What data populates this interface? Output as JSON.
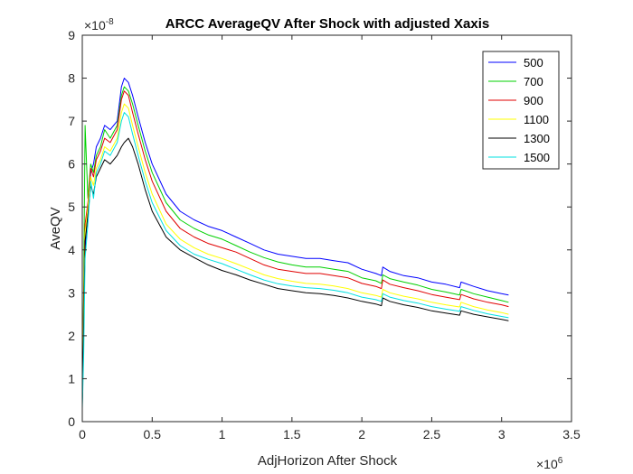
{
  "chart_data": {
    "type": "line",
    "title": "ARCC AverageQV After Shock with adjusted Xaxis",
    "xlabel": "AdjHorizon After Shock",
    "ylabel": "AveQV",
    "x_exponent_base": "×10",
    "x_exponent_power": "6",
    "y_exponent_base": "×10",
    "y_exponent_power": "-8",
    "xlim": [
      0,
      3.5
    ],
    "ylim": [
      0,
      9
    ],
    "x_ticks": [
      0,
      0.5,
      1,
      1.5,
      2,
      2.5,
      3,
      3.5
    ],
    "x_tick_labels": [
      "0",
      "0.5",
      "1",
      "1.5",
      "2",
      "2.5",
      "3",
      "3.5"
    ],
    "y_ticks": [
      0,
      1,
      2,
      3,
      4,
      5,
      6,
      7,
      8,
      9
    ],
    "y_tick_labels": [
      "0",
      "1",
      "2",
      "3",
      "4",
      "5",
      "6",
      "7",
      "8",
      "9"
    ],
    "grid": false,
    "legend_position": "top-right",
    "series": [
      {
        "name": "500",
        "color": "#0000ff",
        "x": [
          0,
          0.01,
          0.02,
          0.04,
          0.06,
          0.08,
          0.1,
          0.13,
          0.16,
          0.2,
          0.25,
          0.28,
          0.3,
          0.33,
          0.36,
          0.4,
          0.45,
          0.5,
          0.6,
          0.7,
          0.8,
          0.9,
          1.0,
          1.1,
          1.2,
          1.3,
          1.4,
          1.5,
          1.6,
          1.7,
          1.8,
          1.9,
          2.0,
          2.1,
          2.14,
          2.15,
          2.2,
          2.3,
          2.4,
          2.5,
          2.6,
          2.7,
          2.71,
          2.8,
          2.9,
          3.0,
          3.05
        ],
        "y": [
          0.5,
          2.5,
          4.0,
          5.0,
          5.8,
          6.0,
          6.4,
          6.6,
          6.9,
          6.8,
          7.0,
          7.8,
          8.0,
          7.9,
          7.6,
          7.1,
          6.5,
          6.0,
          5.3,
          4.9,
          4.7,
          4.55,
          4.45,
          4.3,
          4.15,
          4.0,
          3.9,
          3.85,
          3.8,
          3.8,
          3.75,
          3.7,
          3.55,
          3.45,
          3.4,
          3.6,
          3.5,
          3.4,
          3.35,
          3.25,
          3.2,
          3.12,
          3.25,
          3.15,
          3.05,
          2.98,
          2.95
        ]
      },
      {
        "name": "700",
        "color": "#00d000",
        "x": [
          0,
          0.01,
          0.02,
          0.04,
          0.06,
          0.08,
          0.1,
          0.13,
          0.16,
          0.2,
          0.25,
          0.28,
          0.3,
          0.33,
          0.36,
          0.4,
          0.45,
          0.5,
          0.6,
          0.7,
          0.8,
          0.9,
          1.0,
          1.1,
          1.2,
          1.3,
          1.4,
          1.5,
          1.6,
          1.7,
          1.8,
          1.9,
          2.0,
          2.1,
          2.14,
          2.15,
          2.2,
          2.3,
          2.4,
          2.5,
          2.6,
          2.7,
          2.71,
          2.8,
          2.9,
          3.0,
          3.05
        ],
        "y": [
          0.5,
          3.0,
          6.9,
          5.2,
          6.0,
          5.8,
          6.2,
          6.4,
          6.8,
          6.6,
          6.9,
          7.6,
          7.8,
          7.7,
          7.4,
          6.9,
          6.3,
          5.8,
          5.1,
          4.7,
          4.5,
          4.35,
          4.25,
          4.1,
          3.95,
          3.82,
          3.72,
          3.65,
          3.6,
          3.6,
          3.55,
          3.5,
          3.35,
          3.28,
          3.22,
          3.42,
          3.33,
          3.25,
          3.18,
          3.08,
          3.02,
          2.95,
          3.08,
          2.98,
          2.9,
          2.82,
          2.78
        ]
      },
      {
        "name": "900",
        "color": "#e00000",
        "x": [
          0,
          0.01,
          0.02,
          0.04,
          0.06,
          0.08,
          0.1,
          0.13,
          0.16,
          0.2,
          0.25,
          0.28,
          0.3,
          0.33,
          0.36,
          0.4,
          0.45,
          0.5,
          0.6,
          0.7,
          0.8,
          0.9,
          1.0,
          1.1,
          1.2,
          1.3,
          1.4,
          1.5,
          1.6,
          1.7,
          1.8,
          1.9,
          2.0,
          2.1,
          2.14,
          2.15,
          2.2,
          2.3,
          2.4,
          2.5,
          2.6,
          2.7,
          2.71,
          2.8,
          2.9,
          3.0,
          3.05
        ],
        "y": [
          0.5,
          2.8,
          4.6,
          5.1,
          5.9,
          5.7,
          6.1,
          6.3,
          6.6,
          6.5,
          6.8,
          7.5,
          7.7,
          7.6,
          7.2,
          6.7,
          6.1,
          5.6,
          4.9,
          4.5,
          4.3,
          4.15,
          4.05,
          3.95,
          3.8,
          3.65,
          3.55,
          3.5,
          3.45,
          3.45,
          3.4,
          3.35,
          3.22,
          3.15,
          3.1,
          3.3,
          3.2,
          3.12,
          3.05,
          2.96,
          2.9,
          2.84,
          2.96,
          2.86,
          2.78,
          2.72,
          2.68
        ]
      },
      {
        "name": "1100",
        "color": "#ffff00",
        "x": [
          0,
          0.01,
          0.02,
          0.04,
          0.06,
          0.08,
          0.1,
          0.13,
          0.16,
          0.2,
          0.25,
          0.28,
          0.3,
          0.33,
          0.36,
          0.4,
          0.45,
          0.5,
          0.6,
          0.7,
          0.8,
          0.9,
          1.0,
          1.1,
          1.2,
          1.3,
          1.4,
          1.5,
          1.6,
          1.7,
          1.8,
          1.9,
          2.0,
          2.1,
          2.14,
          2.15,
          2.2,
          2.3,
          2.4,
          2.5,
          2.6,
          2.7,
          2.71,
          2.8,
          2.9,
          3.0,
          3.05
        ],
        "y": [
          0.5,
          2.6,
          4.4,
          5.0,
          5.7,
          5.5,
          5.9,
          6.1,
          6.4,
          6.3,
          6.6,
          7.2,
          7.4,
          7.3,
          6.9,
          6.4,
          5.8,
          5.3,
          4.6,
          4.25,
          4.05,
          3.9,
          3.8,
          3.68,
          3.55,
          3.42,
          3.33,
          3.27,
          3.22,
          3.2,
          3.16,
          3.1,
          3.0,
          2.94,
          2.9,
          3.08,
          3.0,
          2.92,
          2.86,
          2.78,
          2.72,
          2.67,
          2.78,
          2.68,
          2.6,
          2.54,
          2.5
        ]
      },
      {
        "name": "1300",
        "color": "#000000",
        "x": [
          0,
          0.01,
          0.02,
          0.04,
          0.06,
          0.08,
          0.1,
          0.13,
          0.16,
          0.2,
          0.25,
          0.28,
          0.3,
          0.33,
          0.36,
          0.4,
          0.45,
          0.5,
          0.6,
          0.7,
          0.8,
          0.9,
          1.0,
          1.1,
          1.2,
          1.3,
          1.4,
          1.5,
          1.6,
          1.7,
          1.8,
          1.9,
          2.0,
          2.1,
          2.14,
          2.15,
          2.2,
          2.3,
          2.4,
          2.5,
          2.6,
          2.7,
          2.71,
          2.8,
          2.9,
          3.0,
          3.05
        ],
        "y": [
          0.4,
          2.2,
          4.2,
          4.8,
          5.5,
          5.3,
          5.7,
          5.9,
          6.1,
          6.0,
          6.2,
          6.4,
          6.5,
          6.6,
          6.4,
          6.0,
          5.4,
          4.9,
          4.3,
          4.0,
          3.82,
          3.65,
          3.52,
          3.42,
          3.3,
          3.2,
          3.1,
          3.05,
          3.0,
          2.98,
          2.94,
          2.88,
          2.8,
          2.74,
          2.7,
          2.88,
          2.8,
          2.72,
          2.66,
          2.58,
          2.53,
          2.48,
          2.58,
          2.5,
          2.44,
          2.38,
          2.35
        ]
      },
      {
        "name": "1500",
        "color": "#00e0e0",
        "x": [
          0,
          0.01,
          0.02,
          0.04,
          0.06,
          0.08,
          0.1,
          0.13,
          0.16,
          0.2,
          0.25,
          0.28,
          0.3,
          0.33,
          0.36,
          0.4,
          0.45,
          0.5,
          0.6,
          0.7,
          0.8,
          0.9,
          1.0,
          1.1,
          1.2,
          1.3,
          1.4,
          1.5,
          1.6,
          1.7,
          1.8,
          1.9,
          2.0,
          2.1,
          2.14,
          2.15,
          2.2,
          2.3,
          2.4,
          2.5,
          2.6,
          2.7,
          2.71,
          2.8,
          2.9,
          3.0,
          3.05
        ],
        "y": [
          0.3,
          1.5,
          3.8,
          4.6,
          5.6,
          5.2,
          5.8,
          6.0,
          6.3,
          6.2,
          6.5,
          7.0,
          7.2,
          7.1,
          6.7,
          6.2,
          5.6,
          5.1,
          4.45,
          4.1,
          3.9,
          3.78,
          3.68,
          3.55,
          3.42,
          3.3,
          3.21,
          3.16,
          3.12,
          3.1,
          3.06,
          3.0,
          2.9,
          2.84,
          2.8,
          2.98,
          2.9,
          2.82,
          2.76,
          2.68,
          2.62,
          2.57,
          2.68,
          2.59,
          2.51,
          2.45,
          2.42
        ]
      }
    ]
  }
}
